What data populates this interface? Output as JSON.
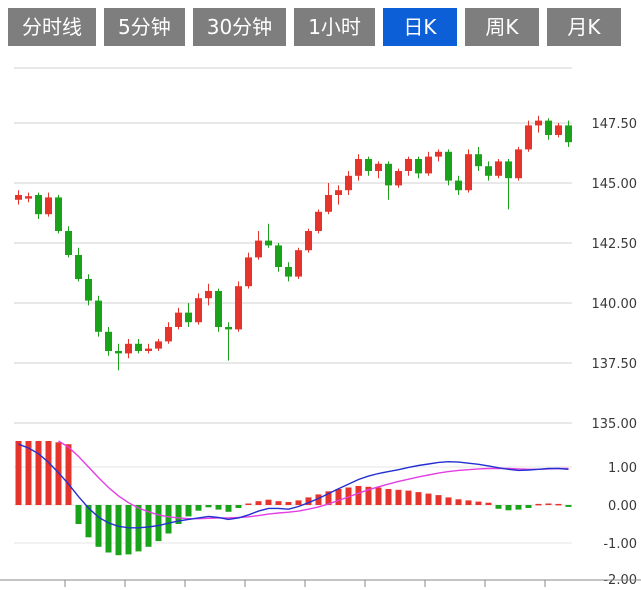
{
  "tabs": {
    "items": [
      {
        "name": "tab-timeline",
        "label": "分时线",
        "active": false
      },
      {
        "name": "tab-5min",
        "label": "5分钟",
        "active": false
      },
      {
        "name": "tab-30min",
        "label": "30分钟",
        "active": false
      },
      {
        "name": "tab-1hour",
        "label": "1小时",
        "active": false
      },
      {
        "name": "tab-daily-k",
        "label": "日K",
        "active": true
      },
      {
        "name": "tab-weekly-k",
        "label": "周K",
        "active": false
      },
      {
        "name": "tab-monthly-k",
        "label": "月K",
        "active": false
      }
    ]
  },
  "colors": {
    "up": "#e5342c",
    "down": "#1aa31a",
    "dif_line": "#2330cf",
    "dea_line": "#e33fe3",
    "tab_bg": "#7e7e7e",
    "tab_active_bg": "#0c5fd6",
    "grid": "#d0d0d0",
    "grid_faint": "#e6e6e6",
    "axis_line": "#8a8a8a",
    "axis_text": "#3a3a3a"
  },
  "chart_data": {
    "type": "candlestick+macd",
    "price_panel": {
      "ylabels": [
        "147.50",
        "145.00",
        "142.50",
        "140.00",
        "137.50",
        "135.00"
      ],
      "ytick_values": [
        147.5,
        145.0,
        142.5,
        140.0,
        137.5,
        135.0
      ],
      "ylim_top": 149.8,
      "candles_ohlc": [
        [
          144.3,
          144.7,
          144.1,
          144.5
        ],
        [
          144.35,
          144.6,
          144.2,
          144.45
        ],
        [
          144.5,
          144.6,
          143.5,
          143.7
        ],
        [
          143.7,
          144.6,
          143.6,
          144.4
        ],
        [
          144.4,
          144.5,
          142.9,
          143.0
        ],
        [
          143.0,
          143.2,
          141.9,
          142.0
        ],
        [
          142.0,
          142.3,
          140.9,
          141.0
        ],
        [
          141.0,
          141.2,
          139.9,
          140.1
        ],
        [
          140.1,
          140.3,
          138.6,
          138.8
        ],
        [
          138.8,
          139.0,
          137.8,
          138.0
        ],
        [
          138.0,
          138.3,
          137.2,
          137.9
        ],
        [
          137.9,
          138.5,
          137.7,
          138.3
        ],
        [
          138.3,
          138.5,
          137.9,
          138.0
        ],
        [
          138.0,
          138.3,
          137.9,
          138.1
        ],
        [
          138.1,
          138.5,
          138.0,
          138.4
        ],
        [
          138.4,
          139.2,
          138.3,
          139.0
        ],
        [
          139.0,
          139.8,
          138.9,
          139.6
        ],
        [
          139.6,
          140.0,
          139.0,
          139.2
        ],
        [
          139.2,
          140.4,
          139.1,
          140.2
        ],
        [
          140.2,
          140.8,
          139.9,
          140.5
        ],
        [
          140.5,
          140.6,
          138.8,
          139.0
        ],
        [
          139.0,
          139.2,
          137.6,
          138.9
        ],
        [
          138.9,
          140.9,
          138.8,
          140.7
        ],
        [
          140.7,
          142.1,
          140.6,
          141.9
        ],
        [
          141.9,
          143.0,
          141.8,
          142.6
        ],
        [
          142.6,
          143.3,
          142.3,
          142.4
        ],
        [
          142.4,
          142.5,
          141.3,
          141.5
        ],
        [
          141.5,
          141.7,
          140.9,
          141.1
        ],
        [
          141.1,
          142.3,
          141.0,
          142.2
        ],
        [
          142.2,
          143.1,
          142.1,
          143.0
        ],
        [
          143.0,
          143.9,
          142.9,
          143.8
        ],
        [
          143.8,
          145.0,
          143.7,
          144.5
        ],
        [
          144.5,
          144.9,
          144.1,
          144.7
        ],
        [
          144.7,
          145.5,
          144.5,
          145.3
        ],
        [
          145.3,
          146.2,
          145.1,
          146.0
        ],
        [
          146.0,
          146.1,
          145.3,
          145.5
        ],
        [
          145.5,
          145.9,
          145.2,
          145.8
        ],
        [
          145.8,
          145.9,
          144.3,
          144.9
        ],
        [
          144.9,
          145.6,
          144.8,
          145.5
        ],
        [
          145.5,
          146.1,
          145.3,
          146.0
        ],
        [
          146.0,
          146.1,
          145.2,
          145.4
        ],
        [
          145.4,
          146.3,
          145.3,
          146.1
        ],
        [
          146.1,
          146.4,
          145.9,
          146.3
        ],
        [
          146.3,
          146.4,
          144.9,
          145.1
        ],
        [
          145.1,
          145.3,
          144.5,
          144.7
        ],
        [
          144.7,
          146.4,
          144.6,
          146.2
        ],
        [
          146.2,
          146.5,
          145.5,
          145.7
        ],
        [
          145.7,
          145.9,
          145.1,
          145.3
        ],
        [
          145.3,
          146.0,
          145.2,
          145.9
        ],
        [
          145.9,
          146.0,
          143.9,
          145.2
        ],
        [
          145.2,
          146.5,
          145.1,
          146.4
        ],
        [
          146.4,
          147.6,
          146.3,
          147.4
        ],
        [
          147.4,
          147.8,
          147.1,
          147.6
        ],
        [
          147.6,
          147.7,
          146.8,
          147.0
        ],
        [
          147.0,
          147.5,
          146.9,
          147.4
        ],
        [
          147.4,
          147.6,
          146.5,
          146.7
        ]
      ]
    },
    "macd_panel": {
      "ylabels": [
        "1.00",
        "0.00",
        "-1.00",
        "-2.00"
      ],
      "ytick_values": [
        1.0,
        0.0,
        -1.0,
        -2.0
      ],
      "hist": [
        1.7,
        1.7,
        1.7,
        1.7,
        1.65,
        1.6,
        -0.5,
        -0.85,
        -1.1,
        -1.25,
        -1.32,
        -1.3,
        -1.22,
        -1.1,
        -0.95,
        -0.75,
        -0.5,
        -0.3,
        -0.15,
        -0.06,
        -0.12,
        -0.18,
        -0.08,
        0.04,
        0.1,
        0.14,
        0.1,
        0.08,
        0.12,
        0.2,
        0.28,
        0.36,
        0.42,
        0.46,
        0.5,
        0.48,
        0.46,
        0.42,
        0.4,
        0.38,
        0.34,
        0.3,
        0.26,
        0.2,
        0.15,
        0.12,
        0.09,
        0.06,
        -0.1,
        -0.14,
        -0.12,
        -0.08,
        0.03,
        0.04,
        0.03,
        -0.05
      ],
      "dif": [
        1.6,
        1.5,
        1.35,
        1.12,
        0.85,
        0.55,
        0.22,
        -0.08,
        -0.32,
        -0.47,
        -0.56,
        -0.6,
        -0.6,
        -0.58,
        -0.54,
        -0.48,
        -0.42,
        -0.38,
        -0.34,
        -0.3,
        -0.33,
        -0.38,
        -0.34,
        -0.26,
        -0.16,
        -0.09,
        -0.09,
        -0.11,
        -0.04,
        0.06,
        0.17,
        0.3,
        0.43,
        0.55,
        0.67,
        0.76,
        0.83,
        0.88,
        0.93,
        0.99,
        1.04,
        1.08,
        1.12,
        1.14,
        1.13,
        1.1,
        1.07,
        1.03,
        0.98,
        0.94,
        0.91,
        0.92,
        0.94,
        0.96,
        0.96,
        0.94
      ],
      "dea": [
        null,
        null,
        null,
        null,
        1.72,
        1.52,
        1.28,
        1.0,
        0.72,
        0.46,
        0.24,
        0.06,
        -0.08,
        -0.18,
        -0.26,
        -0.31,
        -0.34,
        -0.36,
        -0.36,
        -0.35,
        -0.34,
        -0.34,
        -0.33,
        -0.31,
        -0.28,
        -0.24,
        -0.21,
        -0.19,
        -0.16,
        -0.11,
        -0.05,
        0.03,
        0.12,
        0.21,
        0.31,
        0.4,
        0.48,
        0.55,
        0.62,
        0.68,
        0.74,
        0.79,
        0.84,
        0.88,
        0.91,
        0.93,
        0.95,
        0.96,
        0.96,
        0.96,
        0.95,
        0.94,
        0.94,
        0.95,
        0.96,
        0.96
      ]
    }
  }
}
